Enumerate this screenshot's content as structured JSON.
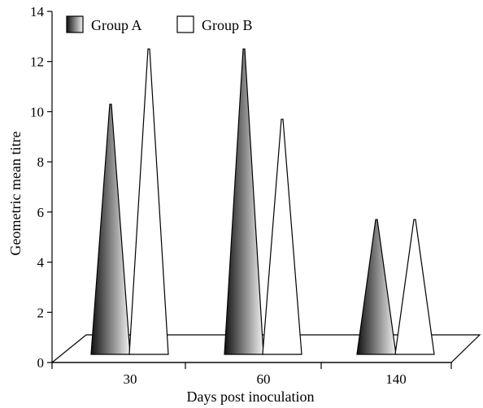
{
  "chart_data": {
    "type": "bar",
    "style": "3d-cone",
    "categories": [
      "30",
      "60",
      "140"
    ],
    "series": [
      {
        "name": "Group A",
        "values": [
          10.3,
          12.5,
          5.7
        ],
        "fill": "gradient-dark"
      },
      {
        "name": "Group B",
        "values": [
          12.5,
          9.7,
          5.7
        ],
        "fill": "white"
      }
    ],
    "title": "",
    "xlabel": "Days post inoculation",
    "ylabel": "Geometric mean titre",
    "ylim": [
      0,
      14
    ],
    "yticks": [
      0,
      2,
      4,
      6,
      8,
      10,
      12,
      14
    ],
    "grid": false,
    "legend": "top-left"
  },
  "colors": {
    "gradient_dark": "#111111",
    "gradient_light": "#f2f2f2",
    "outline": "#000000",
    "white_fill": "#ffffff"
  }
}
